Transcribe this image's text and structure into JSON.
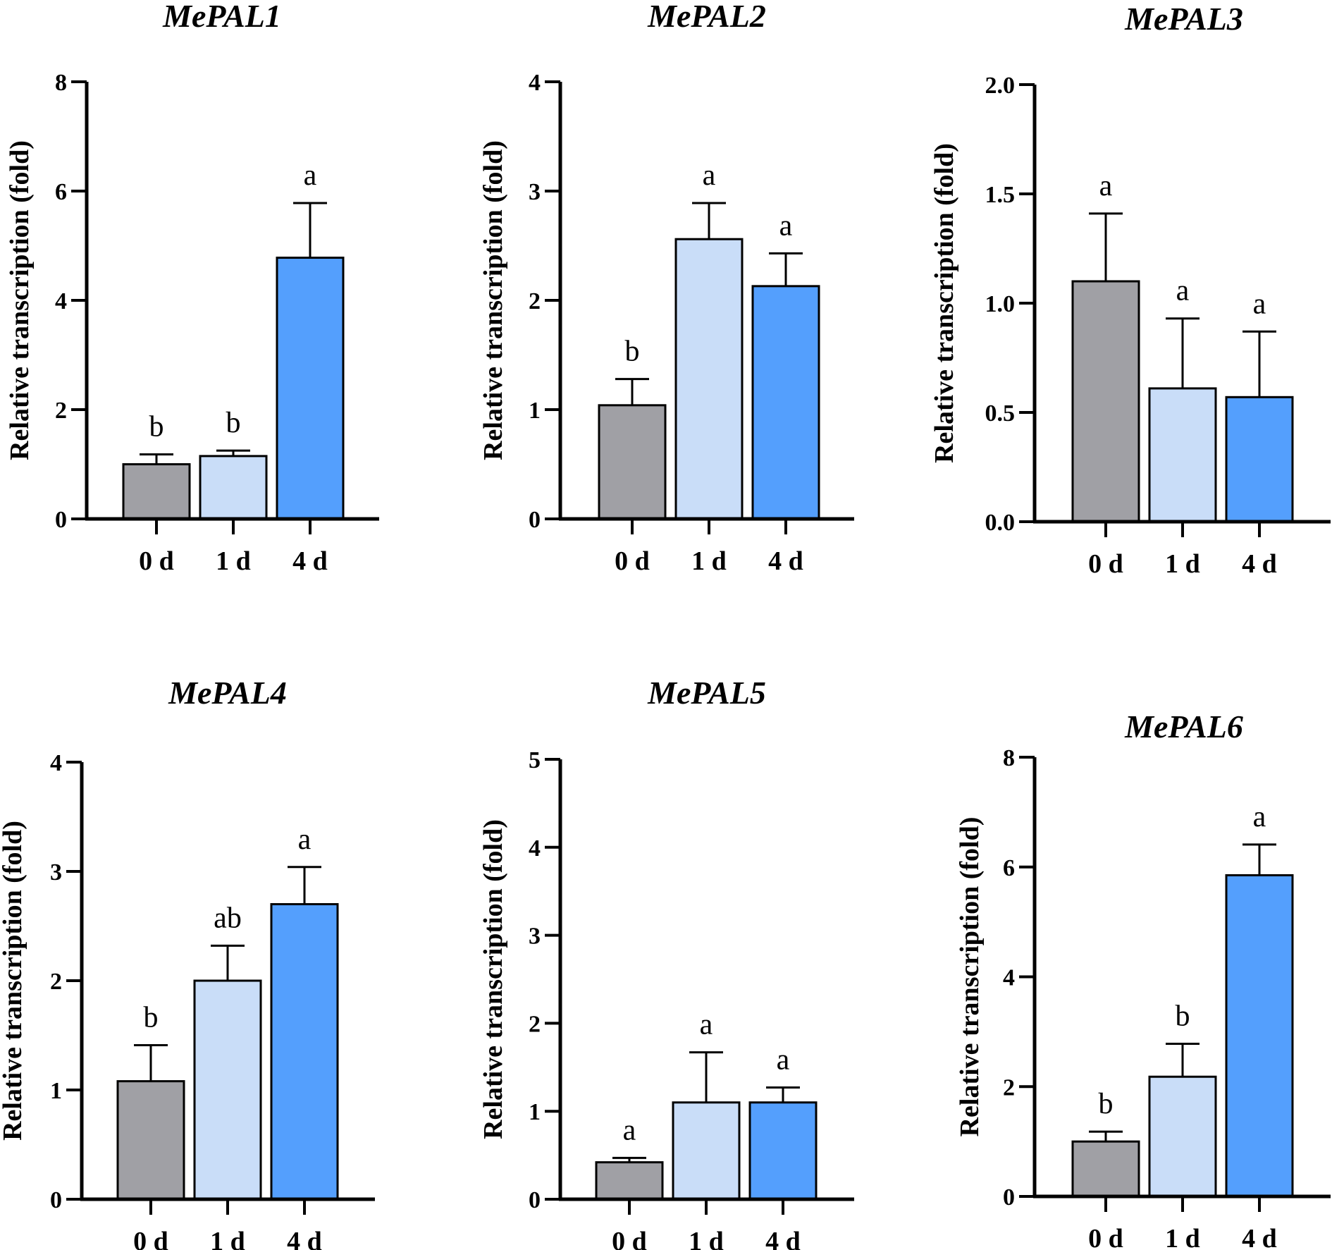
{
  "chart_data": [
    {
      "type": "bar",
      "title": "MePAL1",
      "ylabel": "Relative transcription (fold)",
      "categories": [
        "0 d",
        "1 d",
        "4 d"
      ],
      "values": [
        1.0,
        1.15,
        4.78
      ],
      "errors": [
        0.18,
        0.1,
        1.0
      ],
      "significance": [
        "b",
        "b",
        "a"
      ],
      "ylim": [
        0,
        8
      ],
      "yticks": [
        "0",
        "2",
        "4",
        "6",
        "8"
      ],
      "ytick_values": [
        0,
        2,
        4,
        6,
        8
      ],
      "colors": [
        "#a0a0a5",
        "#c9ddf8",
        "#549ffd"
      ]
    },
    {
      "type": "bar",
      "title": "MePAL2",
      "ylabel": "Relative transcription (fold)",
      "categories": [
        "0 d",
        "1 d",
        "4 d"
      ],
      "values": [
        1.04,
        2.56,
        2.13
      ],
      "errors": [
        0.24,
        0.33,
        0.3
      ],
      "significance": [
        "b",
        "a",
        "a"
      ],
      "ylim": [
        0,
        4
      ],
      "yticks": [
        "0",
        "1",
        "2",
        "3",
        "4"
      ],
      "ytick_values": [
        0,
        1,
        2,
        3,
        4
      ],
      "colors": [
        "#a0a0a5",
        "#c9ddf8",
        "#549ffd"
      ]
    },
    {
      "type": "bar",
      "title": "MePAL3",
      "ylabel": "Relative transcription (fold)",
      "categories": [
        "0 d",
        "1 d",
        "4 d"
      ],
      "values": [
        1.1,
        0.61,
        0.57
      ],
      "errors": [
        0.31,
        0.32,
        0.3
      ],
      "significance": [
        "a",
        "a",
        "a"
      ],
      "ylim": [
        0,
        2
      ],
      "yticks": [
        "0.0",
        "0.5",
        "1.0",
        "1.5",
        "2.0"
      ],
      "ytick_values": [
        0,
        0.5,
        1,
        1.5,
        2
      ],
      "colors": [
        "#a0a0a5",
        "#c9ddf8",
        "#549ffd"
      ]
    },
    {
      "type": "bar",
      "title": "MePAL4",
      "ylabel": "Relative transcription (fold)",
      "categories": [
        "0 d",
        "1 d",
        "4 d"
      ],
      "values": [
        1.08,
        2.0,
        2.7
      ],
      "errors": [
        0.33,
        0.32,
        0.34
      ],
      "significance": [
        "b",
        "ab",
        "a"
      ],
      "ylim": [
        0,
        4
      ],
      "yticks": [
        "0",
        "1",
        "2",
        "3",
        "4"
      ],
      "ytick_values": [
        0,
        1,
        2,
        3,
        4
      ],
      "colors": [
        "#a0a0a5",
        "#c9ddf8",
        "#549ffd"
      ]
    },
    {
      "type": "bar",
      "title": "MePAL5",
      "ylabel": "Relative transcription (fold)",
      "categories": [
        "0 d",
        "1 d",
        "4 d"
      ],
      "values": [
        0.42,
        1.1,
        1.1
      ],
      "errors": [
        0.05,
        0.57,
        0.17
      ],
      "significance": [
        "a",
        "a",
        "a"
      ],
      "ylim": [
        0,
        5
      ],
      "yticks": [
        "0",
        "1",
        "2",
        "3",
        "4",
        "5"
      ],
      "ytick_values": [
        0,
        1,
        2,
        3,
        4,
        5
      ],
      "colors": [
        "#a0a0a5",
        "#c9ddf8",
        "#549ffd"
      ]
    },
    {
      "type": "bar",
      "title": "MePAL6",
      "ylabel": "Relative transcription (fold)",
      "categories": [
        "0 d",
        "1 d",
        "4 d"
      ],
      "values": [
        1.0,
        2.18,
        5.85
      ],
      "errors": [
        0.18,
        0.6,
        0.56
      ],
      "significance": [
        "b",
        "b",
        "a"
      ],
      "ylim": [
        0,
        8
      ],
      "yticks": [
        "0",
        "2",
        "4",
        "6",
        "8"
      ],
      "ytick_values": [
        0,
        2,
        4,
        6,
        8
      ],
      "colors": [
        "#a0a0a5",
        "#c9ddf8",
        "#549ffd"
      ]
    }
  ]
}
